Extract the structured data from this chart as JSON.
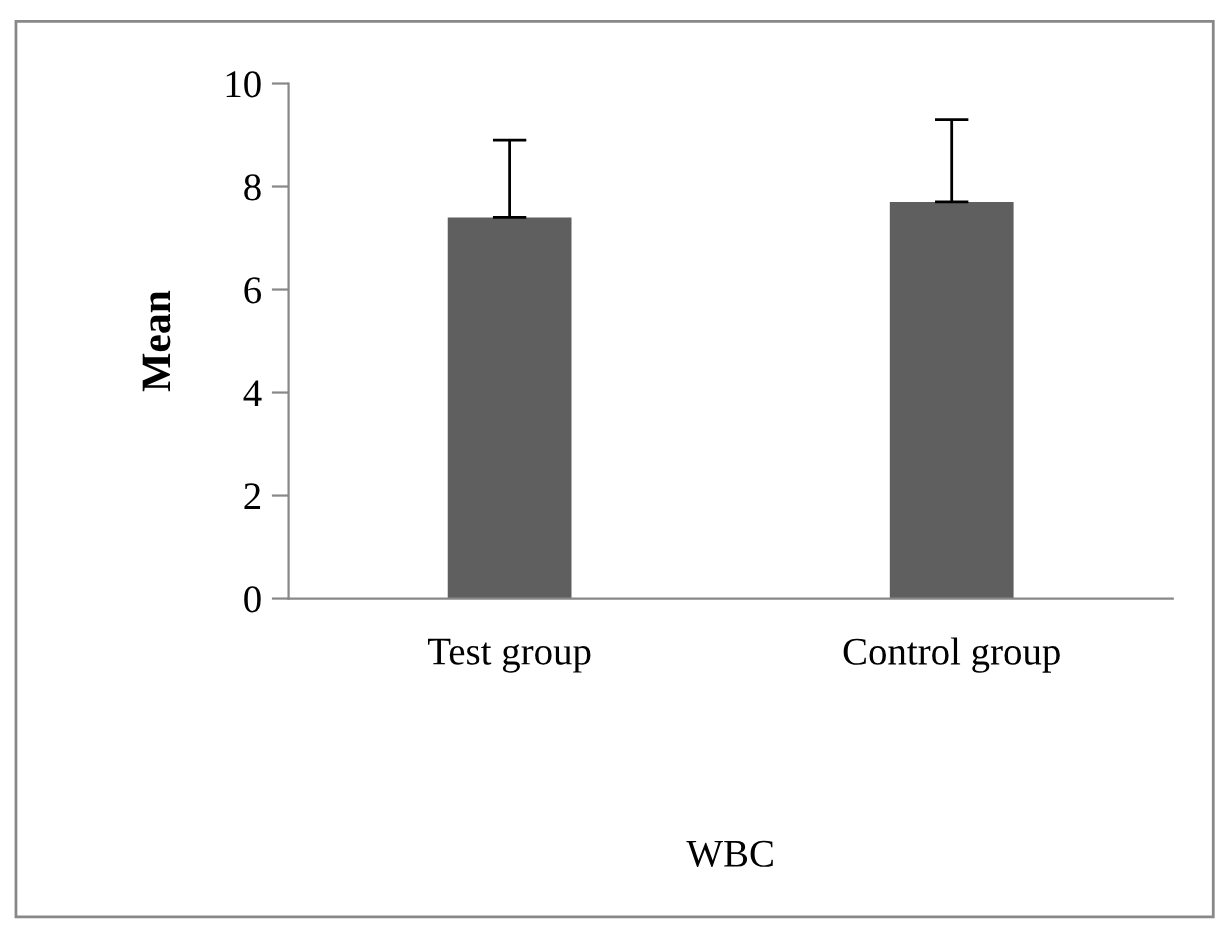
{
  "chart_data": {
    "type": "bar",
    "ylabel": "Mean",
    "xlabel": "WBC",
    "categories": [
      "Test group",
      "Control group"
    ],
    "values": [
      7.4,
      7.7
    ],
    "errors": [
      [
        7.4,
        8.9
      ],
      [
        7.7,
        9.3
      ]
    ],
    "color": "#5f5f5f",
    "ylim": [
      0,
      10
    ],
    "yticks": [
      0,
      2,
      4,
      6,
      8,
      10
    ],
    "grid": false,
    "legend": false
  }
}
